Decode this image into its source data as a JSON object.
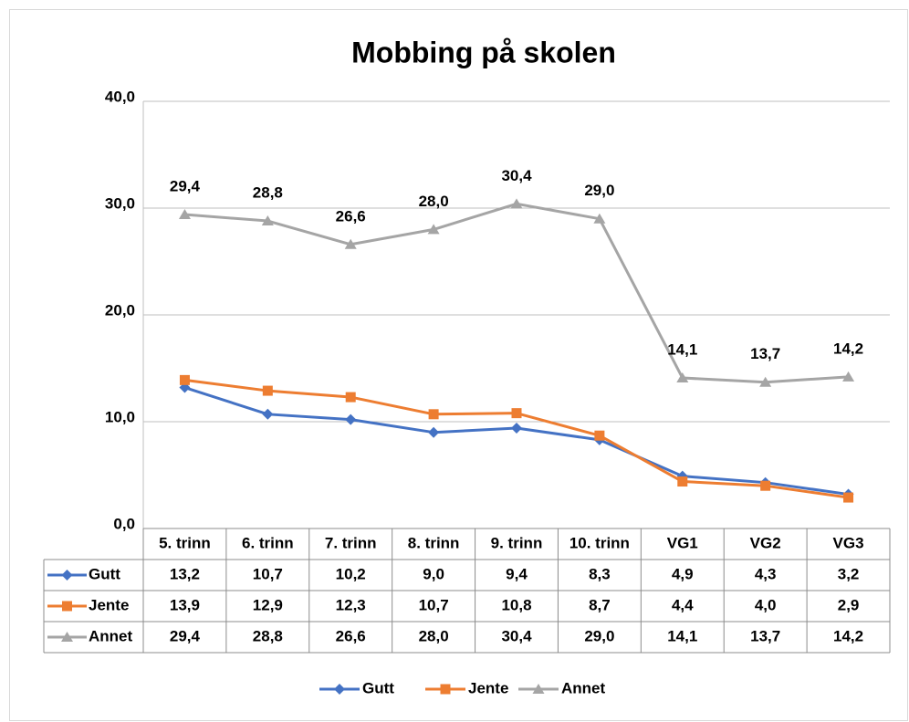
{
  "chart_data": {
    "type": "line",
    "title": "Mobbing på skolen",
    "categories": [
      "5. trinn",
      "6. trinn",
      "7. trinn",
      "8. trinn",
      "9. trinn",
      "10. trinn",
      "VG1",
      "VG2",
      "VG3"
    ],
    "series": [
      {
        "name": "Gutt",
        "color": "#4472c4",
        "marker": "diamond",
        "values": [
          13.2,
          10.7,
          10.2,
          9.0,
          9.4,
          8.3,
          4.9,
          4.3,
          3.2
        ],
        "value_labels": [
          "13,2",
          "10,7",
          "10,2",
          "9,0",
          "9,4",
          "8,3",
          "4,9",
          "4,3",
          "3,2"
        ]
      },
      {
        "name": "Jente",
        "color": "#ed7d31",
        "marker": "square",
        "values": [
          13.9,
          12.9,
          12.3,
          10.7,
          10.8,
          8.7,
          4.4,
          4.0,
          2.9
        ],
        "value_labels": [
          "13,9",
          "12,9",
          "12,3",
          "10,7",
          "10,8",
          "8,7",
          "4,4",
          "4,0",
          "2,9"
        ]
      },
      {
        "name": "Annet",
        "color": "#a5a5a5",
        "marker": "triangle",
        "data_labels": true,
        "values": [
          29.4,
          28.8,
          26.6,
          28.0,
          30.4,
          29.0,
          14.1,
          13.7,
          14.2
        ],
        "value_labels": [
          "29,4",
          "28,8",
          "26,6",
          "28,0",
          "30,4",
          "29,0",
          "14,1",
          "13,7",
          "14,2"
        ]
      }
    ],
    "ylim": [
      0,
      40
    ],
    "yticks": [
      {
        "value": 0,
        "label": "0,0"
      },
      {
        "value": 10,
        "label": "10,0"
      },
      {
        "value": 20,
        "label": "20,0"
      },
      {
        "value": 30,
        "label": "30,0"
      },
      {
        "value": 40,
        "label": "40,0"
      }
    ],
    "grid": true,
    "legend": "bottom"
  }
}
